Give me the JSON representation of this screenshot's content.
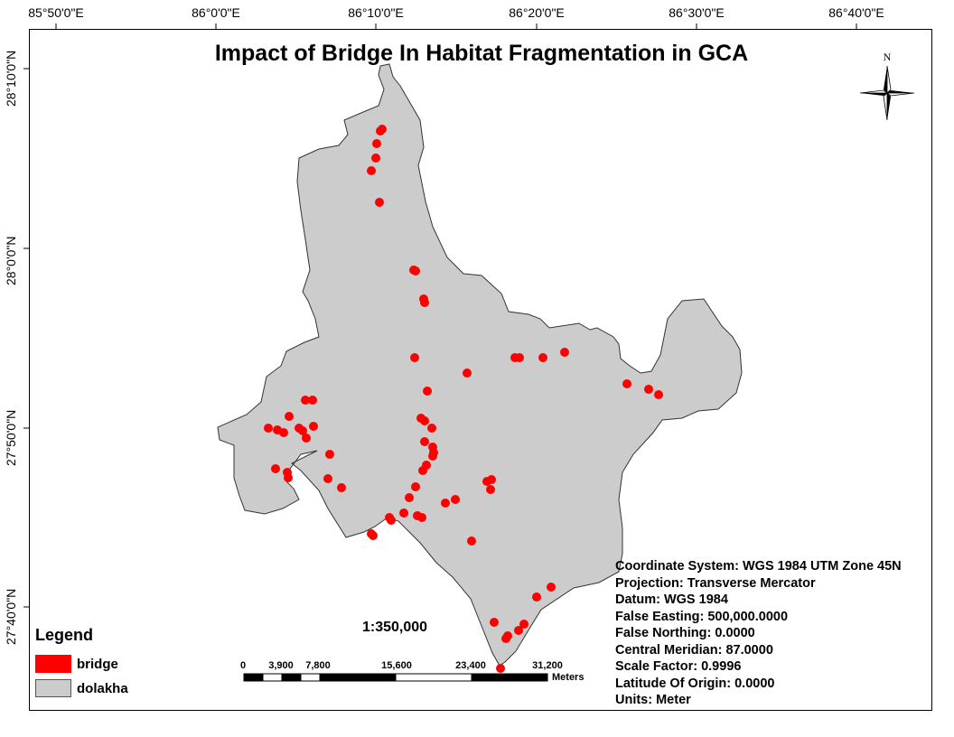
{
  "map": {
    "title": "Impact of Bridge In Habitat Fragmentation in GCA",
    "scale_text": "1:350,000",
    "north_label": "N"
  },
  "graticule": {
    "longitude_labels": [
      "85°50'0\"E",
      "86°0'0\"E",
      "86°10'0\"E",
      "86°20'0\"E",
      "86°30'0\"E",
      "86°40'0\"E"
    ],
    "latitude_labels": [
      "28°10'0\"N",
      "28°0'0\"N",
      "27°50'0\"N",
      "27°40'0\"N"
    ]
  },
  "legend": {
    "title": "Legend",
    "items": [
      {
        "label": "bridge",
        "color": "#ff0000"
      },
      {
        "label": "dolakha",
        "color": "#cccccc"
      }
    ]
  },
  "scale_bar": {
    "labels": [
      "0",
      "3,900",
      "7,800",
      "15,600",
      "23,400",
      "31,200"
    ],
    "units": "Meters"
  },
  "projection_info": [
    "Coordinate System: WGS 1984 UTM Zone 45N",
    "Projection: Transverse Mercator",
    "Datum: WGS 1984",
    "False Easting: 500,000.0000",
    "False Northing: 0.0000",
    "Central Meridian: 87.0000",
    "Scale Factor: 0.9996",
    "Latitude Of Origin: 0.0000",
    "Units: Meter"
  ],
  "colors": {
    "district_fill": "#cccccc",
    "district_outline": "#333333",
    "bridge": "#ff0000"
  }
}
